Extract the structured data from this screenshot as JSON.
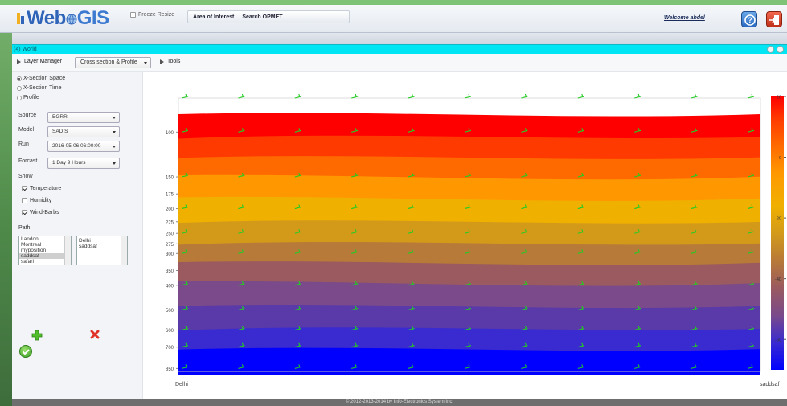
{
  "header": {
    "logo_text_a": "Web",
    "logo_text_b": "GIS",
    "freeze_label": "Freeze Resize",
    "freeze_checked": false,
    "tabs": [
      "Area of Interest",
      "Search OPMET"
    ],
    "welcome": "Welcome abdel",
    "icons": {
      "help": "help-icon",
      "exit": "exit-icon"
    }
  },
  "window": {
    "title": "(4) World"
  },
  "toolbar": {
    "layer_manager": "Layer Manager",
    "mode": "Cross section & Profile",
    "tools": "Tools"
  },
  "panel": {
    "modes": [
      {
        "label": "X-Section Space",
        "checked": true
      },
      {
        "label": "X-Section Time",
        "checked": false
      },
      {
        "label": "Profile",
        "checked": false
      }
    ],
    "source_label": "Source",
    "source_value": "EGRR",
    "model_label": "Model",
    "model_value": "SADIS",
    "run_label": "Run",
    "run_value": "2016-05-06 06:00:00",
    "forecast_label": "Forcast",
    "forecast_value": "1 Day 9 Hours",
    "show_label": "Show",
    "show_options": [
      {
        "label": "Temperature",
        "checked": true
      },
      {
        "label": "Humidity",
        "checked": false
      },
      {
        "label": "Wind-Barbs",
        "checked": true
      }
    ],
    "path_label": "Path",
    "available_points": [
      "Landon",
      "Montreal",
      "myposition",
      "saddsaf",
      "safari"
    ],
    "selected_available": "saddsaf",
    "path_points": [
      "Delhi",
      "saddsaf"
    ]
  },
  "chart_data": {
    "type": "heatmap",
    "title": "",
    "xlabel": "",
    "ylabel": "",
    "x_labels": [
      "Delhi",
      "saddsaf"
    ],
    "y_ticks": [
      100,
      150,
      175,
      200,
      225,
      250,
      275,
      300,
      350,
      400,
      500,
      600,
      700,
      850
    ],
    "y_scale": "pressure (log-like, inverted)",
    "colorbar_ticks": [
      20,
      0,
      -20,
      -40,
      -60
    ],
    "colorbar_range": [
      -70,
      20
    ],
    "colormap": [
      "#0000ff",
      "#3a2bd0",
      "#5a3aa8",
      "#7a4a8a",
      "#9a5a60",
      "#b87a38",
      "#d39a1a",
      "#f0b000",
      "#ff9800",
      "#ff6a00",
      "#ff3a00",
      "#ff0000"
    ],
    "wind_barb_color": "#22cc22",
    "wind_barb_columns": 11
  },
  "footer": {
    "text": "© 2012-2013-2014 by Info-Electronics System Inc."
  }
}
